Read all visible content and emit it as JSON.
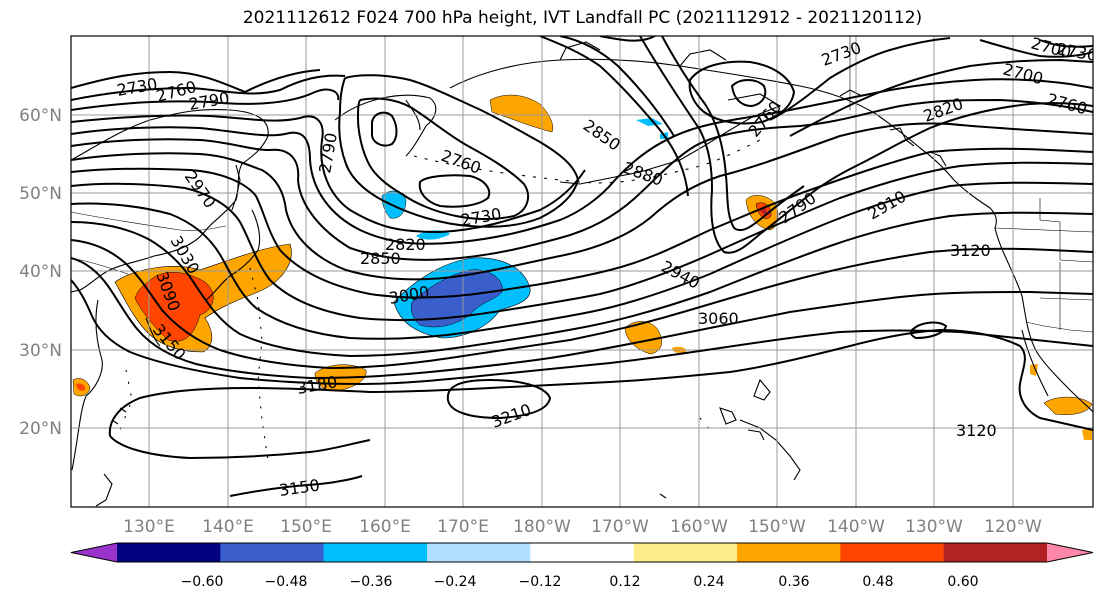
{
  "title": "2021112612 F024 700 hPa height, IVT Landfall PC (2021112912 - 2021120112)",
  "lat_labels": [
    "60°N",
    "50°N",
    "40°N",
    "30°N",
    "20°N"
  ],
  "lon_labels": [
    "130°E",
    "140°E",
    "150°E",
    "160°E",
    "170°E",
    "180°W",
    "170°W",
    "160°W",
    "150°W",
    "140°W",
    "130°W",
    "120°W"
  ],
  "contour_labels": [
    "2730",
    "2760",
    "2790",
    "2790",
    "2760",
    "2730",
    "2820",
    "2850",
    "3000",
    "2850",
    "2880",
    "2940",
    "3060",
    "2790",
    "2910",
    "3120",
    "2820",
    "2760",
    "2700",
    "2730",
    "2760",
    "3030",
    "3090",
    "3150",
    "3180",
    "3210",
    "3150",
    "3120",
    "2970",
    "2700",
    "2730",
    "3120"
  ],
  "colorbar": {
    "ticks": [
      "−0.60",
      "−0.48",
      "−0.36",
      "−0.24",
      "−0.12",
      "0.12",
      "0.24",
      "0.36",
      "0.48",
      "0.60"
    ],
    "colors": [
      "#9933cc",
      "#000080",
      "#3a5fcd",
      "#00bfff",
      "#b0e2ff",
      "#ffffff",
      "#ffec8b",
      "#ffa500",
      "#ff4500",
      "#b22222",
      "#ff88aa"
    ]
  },
  "shading_colors": {
    "positive_low": "#ffa500",
    "positive_mid": "#ff4500",
    "positive_high": "#b22222",
    "negative_low": "#00bfff",
    "negative_mid": "#3a5fcd"
  }
}
